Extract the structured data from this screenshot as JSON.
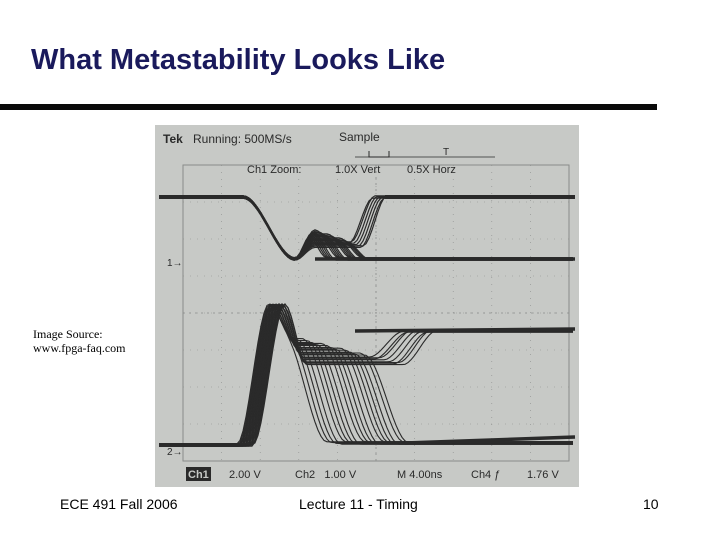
{
  "slide": {
    "title": "What Metastability Looks Like",
    "caption_line1": "Image Source:",
    "caption_line2": "www.fpga-faq.com"
  },
  "scope": {
    "brand": "Tek",
    "status": "Running: 500MS/s",
    "mode": "Sample",
    "zoom_label": "Ch1 Zoom:",
    "zoom_vert": "1.0X Vert",
    "zoom_horz": "0.5X Horz",
    "ch1_marker": "1→",
    "ch2_marker": "2→",
    "ch1_readout_label": "Ch1",
    "ch1_readout_value": "2.00 V",
    "ch2_readout": "Ch2   1.00 V",
    "timebase": "M 4.00ns",
    "trigger": "Ch4 ƒ",
    "trigger_level": "1.76 V",
    "trigger_marker": "T",
    "colors": {
      "screen": "#c7c9c6",
      "grid": "#8a8c8a",
      "trace": "#2a2a2a"
    }
  },
  "footer": {
    "left": "ECE 491 Fall 2006",
    "center": "Lecture 11 - Timing",
    "right": "10"
  }
}
